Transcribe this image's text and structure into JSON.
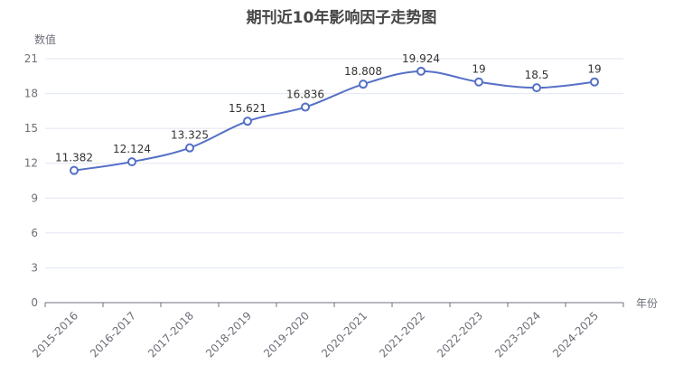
{
  "chart_data": {
    "type": "line",
    "title": "期刊近10年影响因子走势图",
    "xlabel": "年份",
    "ylabel": "数值",
    "categories": [
      "2015-2016",
      "2016-2017",
      "2017-2018",
      "2018-2019",
      "2019-2020",
      "2020-2021",
      "2021-2022",
      "2022-2023",
      "2023-2024",
      "2024-2025"
    ],
    "series": [
      {
        "values": [
          11.382,
          12.124,
          13.325,
          15.621,
          16.836,
          18.808,
          19.924,
          19,
          18.5,
          19
        ],
        "labels": [
          "11.382",
          "12.124",
          "13.325",
          "15.621",
          "16.836",
          "18.808",
          "19.924",
          "19",
          "18.5",
          "19"
        ]
      }
    ],
    "ylim": [
      0,
      21
    ],
    "yticks": [
      0,
      3,
      6,
      9,
      12,
      15,
      18,
      21
    ],
    "ytick_labels": [
      "0",
      "3",
      "6",
      "9",
      "12",
      "15",
      "18",
      "21"
    ],
    "grid": true,
    "smooth": true,
    "colors": {
      "line": "#5470c6",
      "grid": "#e0e6f1",
      "axis": "#6e7079"
    }
  }
}
